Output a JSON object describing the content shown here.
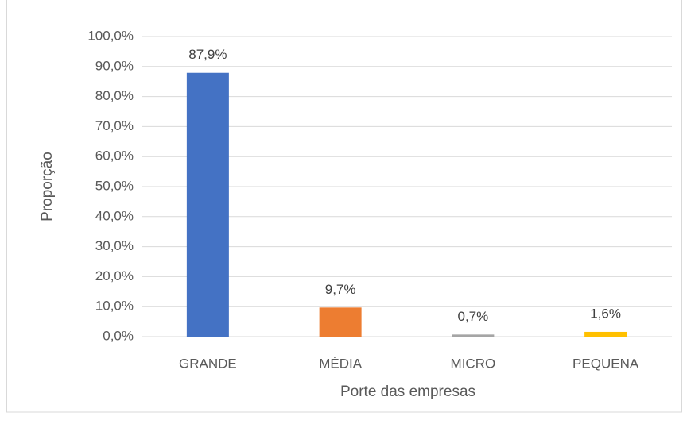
{
  "chart_data": {
    "type": "bar",
    "x_label": "Porte das empresas",
    "y_label": "Proporção",
    "categories": [
      "GRANDE",
      "MÉDIA",
      "MICRO",
      "PEQUENA"
    ],
    "values": [
      87.9,
      9.7,
      0.7,
      1.6
    ],
    "value_labels": [
      "87,9%",
      "9,7%",
      "0,7%",
      "1,6%"
    ],
    "colors": [
      "#4472c4",
      "#ed7d31",
      "#a5a5a5",
      "#ffc000"
    ],
    "ylim": [
      0,
      100
    ],
    "yticks": [
      {
        "value": 0,
        "label": "0,0%"
      },
      {
        "value": 10,
        "label": "10,0%"
      },
      {
        "value": 20,
        "label": "20,0%"
      },
      {
        "value": 30,
        "label": "30,0%"
      },
      {
        "value": 40,
        "label": "40,0%"
      },
      {
        "value": 50,
        "label": "50,0%"
      },
      {
        "value": 60,
        "label": "60,0%"
      },
      {
        "value": 70,
        "label": "70,0%"
      },
      {
        "value": 80,
        "label": "80,0%"
      },
      {
        "value": 90,
        "label": "90,0%"
      },
      {
        "value": 100,
        "label": "100,0%"
      }
    ],
    "grid": true
  }
}
